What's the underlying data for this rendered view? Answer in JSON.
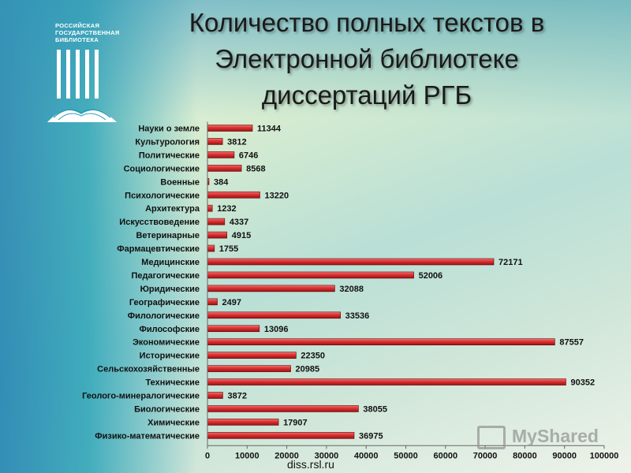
{
  "header": {
    "title_lines": [
      "Количество полных текстов в",
      "Электронной библиотеке",
      "диссертаций РГБ"
    ]
  },
  "logo": {
    "lines": [
      "РОССИЙСКАЯ",
      "ГОСУДАРСТВЕННАЯ",
      "БИБЛИОТЕКА"
    ],
    "icon": "library-columns-book-icon"
  },
  "footer": {
    "source": "diss.rsl.ru"
  },
  "watermark": {
    "text": "MyShared",
    "icon": "presentation-board-icon"
  },
  "colors": {
    "bar": "#c8161b",
    "bar_highlight": "#f07a7a",
    "title": "#1a1a1a"
  },
  "chart_data": {
    "type": "bar",
    "orientation": "horizontal",
    "title": "",
    "xlabel": "",
    "ylabel": "",
    "xlim": [
      0,
      100000
    ],
    "xticks": [
      "0",
      "10000",
      "20000",
      "30000",
      "40000",
      "50000",
      "60000",
      "70000",
      "80000",
      "90000",
      "100000"
    ],
    "grid": false,
    "legend": "none",
    "categories": [
      "Науки о земле",
      "Культурология",
      "Политические",
      "Социологические",
      "Военные",
      "Психологические",
      "Архитектура",
      "Искусствоведение",
      "Ветеринарные",
      "Фармацевтические",
      "Медицинские",
      "Педагогические",
      "Юридические",
      "Географические",
      "Филологические",
      "Философские",
      "Экономические",
      "Исторические",
      "Сельскохозяйственные",
      "Технические",
      "Геолого-минералогические",
      "Биологические",
      "Химические",
      "Физико-математические"
    ],
    "values": [
      11344,
      3812,
      6746,
      8568,
      384,
      13220,
      1232,
      4337,
      4915,
      1755,
      72171,
      52006,
      32088,
      2497,
      33536,
      13096,
      87557,
      22350,
      20985,
      90352,
      3872,
      38055,
      17907,
      36975
    ]
  }
}
